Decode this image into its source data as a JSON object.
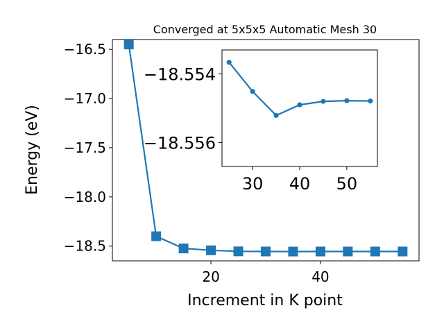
{
  "colors": {
    "series": "#1f77b4",
    "axis": "#000000",
    "background": "#ffffff"
  },
  "chart_data": [
    {
      "type": "line",
      "title": "Converged at 5x5x5 Automatic Mesh 30",
      "xlabel": "Increment in K point",
      "ylabel": "Energy (eV)",
      "marker": "square",
      "xlim": [
        2,
        58
      ],
      "ylim": [
        -18.65,
        -16.4
      ],
      "xticks": [
        20,
        40
      ],
      "xtick_labels": [
        "20",
        "40"
      ],
      "yticks": [
        -16.5,
        -17.0,
        -17.5,
        -18.0,
        -18.5
      ],
      "ytick_labels": [
        "−16.5",
        "−17.0",
        "−17.5",
        "−18.0",
        "−18.5"
      ],
      "series": [
        {
          "x": [
            5,
            10,
            15,
            20,
            25,
            30,
            35,
            40,
            45,
            50,
            55
          ],
          "y": [
            -16.45,
            -18.4,
            -18.524,
            -18.543,
            -18.5535,
            -18.5547,
            -18.5553,
            -18.5549,
            -18.5548,
            -18.5548,
            -18.5548
          ]
        }
      ]
    },
    {
      "type": "line",
      "inset": true,
      "title": "",
      "xlabel": "",
      "ylabel": "",
      "marker": "circle",
      "xlim": [
        23.5,
        56.5
      ],
      "ylim": [
        -18.5533,
        -18.5567
      ],
      "xticks": [
        30,
        40,
        50
      ],
      "xtick_labels": [
        "30",
        "40",
        "50"
      ],
      "yticks": [
        -18.556,
        -18.554
      ],
      "ytick_labels": [
        "−18.556",
        "−18.554"
      ],
      "series": [
        {
          "x": [
            25,
            30,
            35,
            40,
            45,
            50,
            55
          ],
          "y": [
            -18.55366,
            -18.55451,
            -18.55521,
            -18.5549,
            -18.5548,
            -18.55478,
            -18.55479
          ]
        }
      ]
    }
  ]
}
